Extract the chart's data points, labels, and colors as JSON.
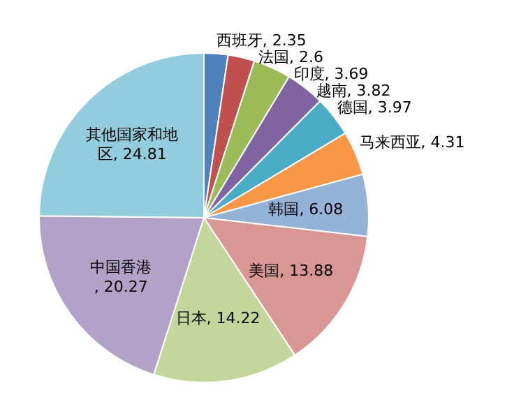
{
  "chart_data": {
    "type": "pie",
    "categories": [
      "西班牙",
      "法国",
      "印度",
      "越南",
      "德国",
      "马来西亚",
      "韩国",
      "美国",
      "日本",
      "中国香港",
      "其他国家和地区"
    ],
    "values": [
      2.35,
      2.6,
      3.69,
      3.82,
      3.97,
      4.31,
      6.08,
      13.88,
      14.22,
      20.27,
      24.81
    ],
    "colors": [
      "#4f81bd",
      "#c0504d",
      "#9bbb59",
      "#8064a2",
      "#4bacc6",
      "#f79646",
      "#95b3d7",
      "#d99694",
      "#c3d69b",
      "#b3a2c7",
      "#93cddd"
    ],
    "value_labels": [
      ", 2.35",
      ", 2.6",
      ", 3.69",
      ", 3.82",
      ", 3.97",
      ", 4.31",
      ", 6.08",
      ", 13.88",
      ", 14.22",
      ", 20.27",
      ", 24.81"
    ]
  }
}
